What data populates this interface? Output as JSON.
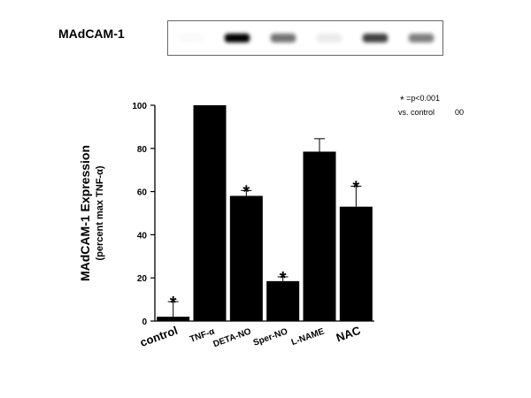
{
  "blot": {
    "label": "MAdCAM-1",
    "band_intensity": [
      0.02,
      1.0,
      0.55,
      0.08,
      0.75,
      0.5
    ],
    "band_color": "#000000"
  },
  "annotation": {
    "star": "*",
    "line1": "=p<0.001",
    "line2": "vs. control",
    "line2_suffix": "00"
  },
  "chart_data": {
    "type": "bar",
    "categories": [
      "control",
      "TNF-α",
      "DETA-NO",
      "Sper-NO",
      "L-NAME",
      "NAC"
    ],
    "values": [
      2,
      100,
      58,
      18.5,
      78.5,
      53
    ],
    "errors": [
      7,
      0,
      2.5,
      2,
      6,
      9.5
    ],
    "significant": [
      true,
      false,
      true,
      true,
      false,
      true
    ],
    "significance_marker": "*",
    "ylabel": "MAdCAM-1 Expression",
    "ylabel_sub": "(percent max TNF-α)",
    "ylim": [
      0,
      100
    ],
    "yticks": [
      "0",
      "20",
      "40",
      "60",
      "80",
      "100"
    ],
    "bar_color": "#000000",
    "grid": false
  }
}
